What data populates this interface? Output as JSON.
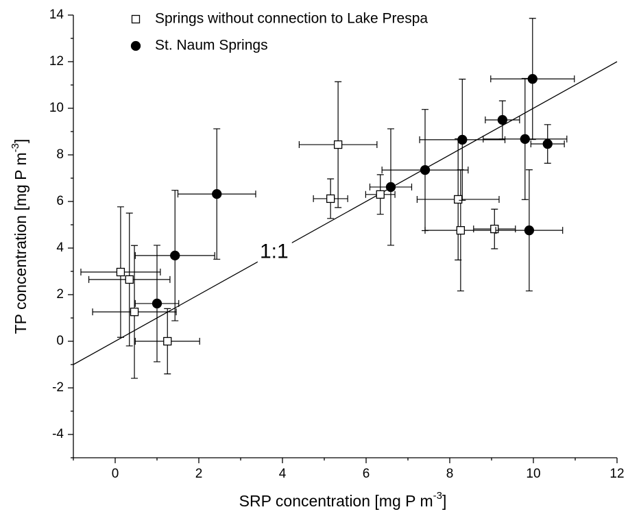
{
  "chart_data": {
    "type": "scatter",
    "xlabel": {
      "text": "SRP concentration [mg P m",
      "superscript": "-3",
      "suffix": "]"
    },
    "ylabel": {
      "text": "TP concentration [mg P m",
      "superscript": "-3",
      "suffix": "]"
    },
    "xlim": [
      -1,
      12
    ],
    "ylim": [
      -5,
      14
    ],
    "xticks": [
      0,
      2,
      4,
      6,
      8,
      10,
      12
    ],
    "yticks": [
      -4,
      -2,
      0,
      2,
      4,
      6,
      8,
      10,
      12,
      14
    ],
    "xminor": [
      -1,
      1,
      3,
      5,
      7,
      9,
      11
    ],
    "yminor": [
      -5,
      -3,
      -1,
      1,
      3,
      5,
      7,
      9,
      11,
      13
    ],
    "reference_line": {
      "label": "1:1",
      "x": [
        -1,
        12
      ],
      "y": [
        -1,
        12
      ],
      "label_x": 3.8,
      "label_y": 3.8,
      "color": "#000000"
    },
    "series": [
      {
        "name": "Springs without connection to Lake Prespa",
        "color": "#000000",
        "marker": "square",
        "filled": false,
        "x": [
          0.13,
          0.34,
          0.46,
          1.25,
          5.15,
          5.33,
          6.34,
          8.2,
          8.26,
          9.07
        ],
        "values": [
          2.97,
          2.65,
          1.26,
          0,
          6.12,
          8.44,
          6.3,
          6.09,
          4.76,
          4.82
        ],
        "xerr": [
          0.95,
          0.97,
          1.0,
          0.77,
          0.41,
          0.93,
          0.35,
          0.98,
          0.85,
          0.5
        ],
        "yerr": [
          2.8,
          2.85,
          2.85,
          1.4,
          0.85,
          2.7,
          0.85,
          2.6,
          2.6,
          0.85
        ]
      },
      {
        "name": "St. Naum Springs",
        "color": "#000000",
        "marker": "circle",
        "filled": true,
        "x": [
          1.0,
          1.43,
          2.43,
          6.59,
          7.41,
          8.3,
          9.26,
          9.98,
          9.8,
          10.34,
          9.9
        ],
        "values": [
          1.62,
          3.68,
          6.32,
          6.62,
          7.35,
          8.65,
          9.5,
          11.26,
          8.68,
          8.47,
          4.76
        ],
        "xerr": [
          0.52,
          0.95,
          0.93,
          0.5,
          1.03,
          1.02,
          0.41,
          1.0,
          1.0,
          0.4,
          0.8
        ],
        "yerr": [
          2.5,
          2.8,
          2.8,
          2.5,
          2.6,
          2.6,
          0.82,
          2.6,
          2.6,
          0.83,
          2.6
        ]
      }
    ],
    "legend": "top-left"
  }
}
